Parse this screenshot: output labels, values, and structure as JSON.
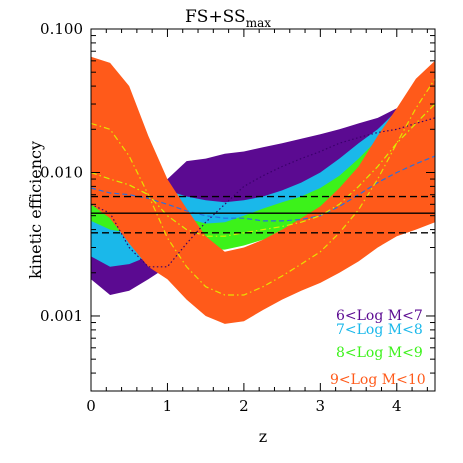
{
  "chart_data": {
    "type": "area",
    "title": "FS+SS",
    "title_sub": "max",
    "xlabel": "z",
    "ylabel": "kinetic efficiency",
    "xlim": [
      0,
      4.5
    ],
    "ylim": [
      0.0003,
      0.1
    ],
    "yscale": "log",
    "grid": false,
    "legend_position": "bottom-right",
    "x_ticks": [
      {
        "value": 0,
        "label": "0"
      },
      {
        "value": 1,
        "label": "1"
      },
      {
        "value": 2,
        "label": "2"
      },
      {
        "value": 3,
        "label": "3"
      },
      {
        "value": 4,
        "label": "4"
      }
    ],
    "y_ticks": [
      {
        "value": 0.1,
        "label": "0.100"
      },
      {
        "value": 0.01,
        "label": "0.010"
      },
      {
        "value": 0.001,
        "label": "0.001"
      }
    ],
    "x": [
      0,
      0.25,
      0.5,
      0.75,
      1.0,
      1.25,
      1.5,
      1.75,
      2.0,
      2.25,
      2.5,
      2.75,
      3.0,
      3.25,
      3.5,
      3.75,
      4.0,
      4.25,
      4.5
    ],
    "series": [
      {
        "name": "6<Log M<7",
        "color": "#5b0a91",
        "upper": [
          0.0045,
          0.0045,
          0.0052,
          0.0068,
          0.009,
          0.012,
          0.0125,
          0.0135,
          0.014,
          0.015,
          0.016,
          0.0172,
          0.0185,
          0.02,
          0.022,
          0.024,
          0.028,
          0.03,
          0.035
        ],
        "lower": [
          0.0018,
          0.0014,
          0.0015,
          0.0018,
          0.0022,
          0.0026,
          0.003,
          0.0036,
          0.0045,
          0.0055,
          0.0065,
          0.0072,
          0.0082,
          0.0095,
          0.011,
          0.013,
          0.015,
          0.0165,
          0.018
        ],
        "median": [
          0.006,
          0.0052,
          0.003,
          0.0022,
          0.0022,
          0.0032,
          0.0045,
          0.006,
          0.008,
          0.0095,
          0.011,
          0.0125,
          0.014,
          0.016,
          0.0175,
          0.019,
          0.02,
          0.022,
          0.024
        ]
      },
      {
        "name": "7<Log M<8",
        "color": "#1ab8ea",
        "upper": [
          0.0085,
          0.0085,
          0.0085,
          0.0082,
          0.0075,
          0.0068,
          0.0064,
          0.0062,
          0.0064,
          0.0068,
          0.0075,
          0.0085,
          0.01,
          0.0125,
          0.016,
          0.02,
          0.027,
          0.03,
          0.035
        ],
        "lower": [
          0.0026,
          0.0022,
          0.0023,
          0.0026,
          0.003,
          0.0033,
          0.0036,
          0.004,
          0.0044,
          0.0044,
          0.0042,
          0.004,
          0.0038,
          0.0038,
          0.004,
          0.0044,
          0.0048,
          0.0055,
          0.0065
        ],
        "median": [
          0.0078,
          0.0072,
          0.007,
          0.0066,
          0.006,
          0.0054,
          0.005,
          0.0048,
          0.0048,
          0.0046,
          0.0046,
          0.0047,
          0.005,
          0.0058,
          0.007,
          0.0085,
          0.01,
          0.0115,
          0.013
        ]
      },
      {
        "name": "8<Log M<9",
        "color": "#3cf21a",
        "upper": [
          0.016,
          0.014,
          0.012,
          0.009,
          0.006,
          0.0048,
          0.0044,
          0.0045,
          0.005,
          0.0056,
          0.0062,
          0.0068,
          0.0078,
          0.0095,
          0.0125,
          0.017,
          0.023,
          0.03,
          0.038
        ],
        "lower": [
          0.0046,
          0.004,
          0.0038,
          0.0036,
          0.0033,
          0.003,
          0.0029,
          0.0029,
          0.0031,
          0.0034,
          0.0037,
          0.0039,
          0.004,
          0.0042,
          0.0048,
          0.0058,
          0.0075,
          0.009,
          0.0105
        ],
        "median": [
          0.01,
          0.009,
          0.0082,
          0.007,
          0.005,
          0.004,
          0.0036,
          0.0036,
          0.0038,
          0.004,
          0.0042,
          0.0045,
          0.005,
          0.006,
          0.008,
          0.011,
          0.016,
          0.022,
          0.03
        ]
      },
      {
        "name": "9<Log M<10",
        "color": "#ff5a1a",
        "upper": [
          0.064,
          0.058,
          0.04,
          0.018,
          0.009,
          0.0056,
          0.0036,
          0.0028,
          0.003,
          0.0034,
          0.004,
          0.0048,
          0.0058,
          0.0078,
          0.011,
          0.018,
          0.028,
          0.045,
          0.06
        ],
        "lower": [
          0.006,
          0.0048,
          0.0032,
          0.0022,
          0.0018,
          0.0013,
          0.001,
          0.00088,
          0.00092,
          0.0011,
          0.0013,
          0.0015,
          0.0017,
          0.002,
          0.0024,
          0.003,
          0.0036,
          0.004,
          0.0045
        ],
        "median": [
          0.022,
          0.02,
          0.013,
          0.007,
          0.0035,
          0.0022,
          0.0016,
          0.0014,
          0.0014,
          0.0016,
          0.0019,
          0.0023,
          0.0028,
          0.0038,
          0.0055,
          0.009,
          0.016,
          0.028,
          0.045
        ]
      }
    ],
    "reference_lines": [
      {
        "y": 0.0052,
        "style": "solid",
        "color": "#000000"
      },
      {
        "y": 0.0068,
        "style": "dashed",
        "color": "#000000"
      },
      {
        "y": 0.0038,
        "style": "dashed",
        "color": "#000000"
      }
    ]
  }
}
